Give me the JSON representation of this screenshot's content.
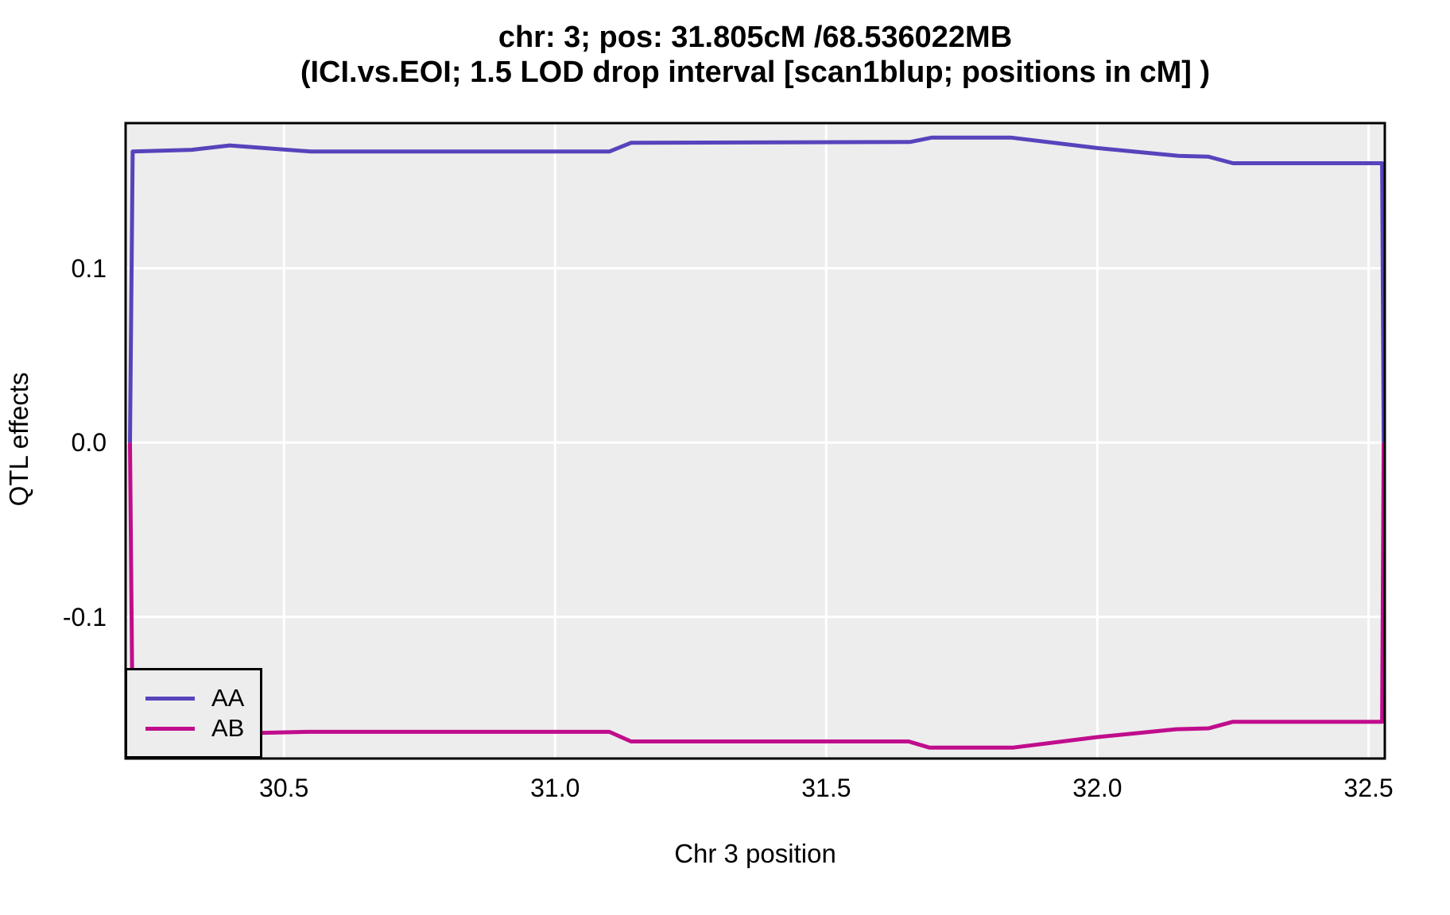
{
  "chart_data": {
    "type": "line",
    "title": "chr: 3; pos: 31.805cM /68.536022MB",
    "subtitle": "(ICI.vs.EOI; 1.5 LOD drop interval [scan1blup; positions in cM] )",
    "xlabel": "Chr 3 position",
    "ylabel": "QTL effects",
    "xlim": [
      30.208,
      32.53
    ],
    "ylim": [
      -0.1813,
      0.1833
    ],
    "x_ticks": [
      30.5,
      31.0,
      31.5,
      32.0,
      32.5
    ],
    "x_tick_labels": [
      "30.5",
      "31.0",
      "31.5",
      "32.0",
      "32.5"
    ],
    "y_ticks": [
      0.1,
      0.0,
      -0.1
    ],
    "y_tick_labels": [
      "0.1",
      "0.0",
      "-0.1"
    ],
    "grid": "major-only",
    "grid_color": "#FFFFFF",
    "panel_bg": "#EDEDED",
    "panel_border_color": "#000000",
    "legend_position": "bottom-left-inside",
    "series": [
      {
        "name": "AA",
        "color": "#5843BC",
        "points": [
          [
            30.216,
            0.0
          ],
          [
            30.221,
            0.167
          ],
          [
            30.33,
            0.168
          ],
          [
            30.4,
            0.1705
          ],
          [
            30.55,
            0.167
          ],
          [
            31.1,
            0.167
          ],
          [
            31.14,
            0.172
          ],
          [
            31.655,
            0.1725
          ],
          [
            31.695,
            0.175
          ],
          [
            31.84,
            0.175
          ],
          [
            32.0,
            0.169
          ],
          [
            32.15,
            0.1645
          ],
          [
            32.205,
            0.164
          ],
          [
            32.25,
            0.1603
          ],
          [
            32.525,
            0.1603
          ],
          [
            32.528,
            0.0
          ]
        ]
      },
      {
        "name": "AB",
        "color": "#C00D8C",
        "points": [
          [
            30.216,
            0.0
          ],
          [
            30.221,
            -0.1675
          ],
          [
            30.33,
            -0.1675
          ],
          [
            30.545,
            -0.166
          ],
          [
            31.1,
            -0.166
          ],
          [
            31.14,
            -0.1715
          ],
          [
            31.652,
            -0.1715
          ],
          [
            31.69,
            -0.175
          ],
          [
            31.845,
            -0.175
          ],
          [
            32.0,
            -0.169
          ],
          [
            32.145,
            -0.1645
          ],
          [
            32.205,
            -0.164
          ],
          [
            32.25,
            -0.1602
          ],
          [
            32.525,
            -0.1602
          ],
          [
            32.528,
            0.0
          ]
        ]
      }
    ]
  }
}
